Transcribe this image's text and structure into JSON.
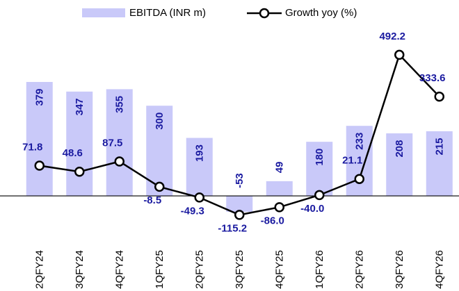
{
  "chart_data": {
    "type": "bar-line",
    "categories": [
      "2QFY24",
      "3QFY24",
      "4QFY24",
      "1QFY25",
      "2QFY25",
      "3QFY25",
      "4QFY25",
      "1QFY26",
      "2QFY26",
      "3QFY26",
      "4QFY26"
    ],
    "series": [
      {
        "name": "EBITDA (INR m)",
        "type": "bar",
        "color": "#c9c9f9",
        "values": [
          379,
          347,
          355,
          300,
          193,
          -53,
          49,
          180,
          233,
          208,
          215
        ]
      },
      {
        "name": "Growth yoy (%)",
        "type": "line",
        "axis": "y2",
        "color": "#000000",
        "values": [
          71.8,
          48.6,
          87.5,
          -8.5,
          -49.3,
          -115.2,
          -86.0,
          -40.0,
          21.1,
          492.2,
          333.6
        ],
        "value_labels": [
          "71.8",
          "48.6",
          "87.5",
          "-8.5",
          "-49.3",
          "-115.2",
          "-86.0",
          "-40.0",
          "21.1",
          "492.2",
          "333.6"
        ]
      }
    ],
    "ylim": [
      -120,
      520
    ],
    "y2lim": [
      -180,
      550
    ],
    "label_color": "#1a1aa0"
  }
}
